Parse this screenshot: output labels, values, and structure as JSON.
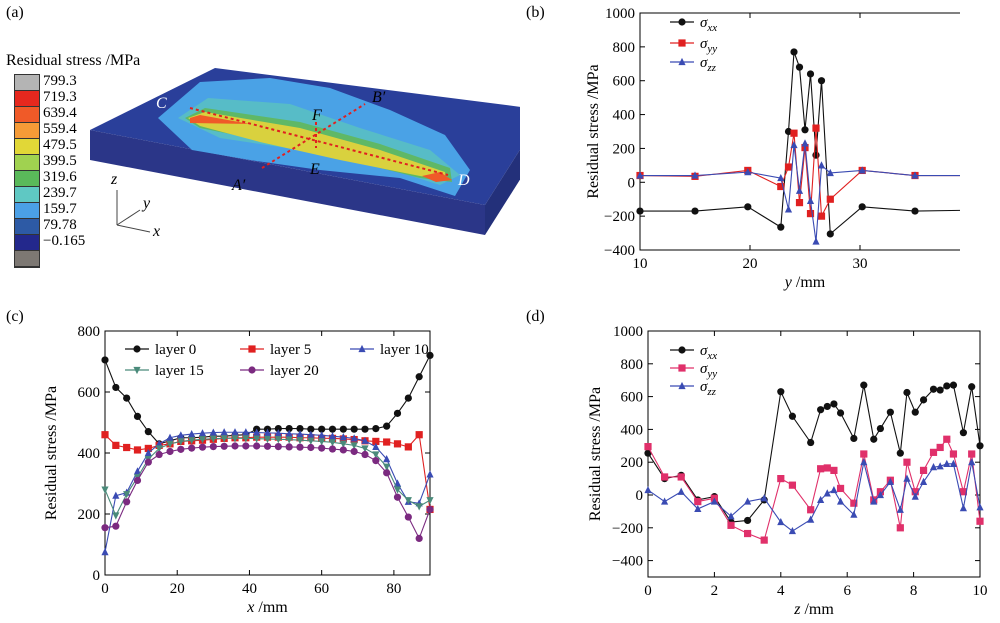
{
  "panels": {
    "a": {
      "label": "(a)",
      "colorbar_title": "Residual stress /MPa",
      "colorbar_labels": [
        "799.3",
        "719.3",
        "639.4",
        "559.4",
        "479.5",
        "399.5",
        "319.6",
        "239.7",
        "159.7",
        "79.78",
        "−0.165"
      ],
      "colorbar_colors": [
        "#b4b4b4",
        "#e6281e",
        "#f05a28",
        "#f59b37",
        "#e1d737",
        "#a0d250",
        "#5ab95a",
        "#5fc8c3",
        "#4ba0e6",
        "#2d5aa5",
        "#23288c",
        "#7d7873"
      ],
      "points": {
        "C": "C",
        "D": "D",
        "E": "E",
        "F": "F",
        "A": "A′",
        "B": "B′"
      },
      "axes": {
        "z": "z",
        "y": "y",
        "x": "x"
      }
    },
    "b": {
      "label": "(b)"
    },
    "c": {
      "label": "(c)"
    },
    "d": {
      "label": "(d)"
    }
  },
  "chart_data": [
    {
      "id": "b",
      "type": "line",
      "xlabel": "y /mm",
      "ylabel": "Residual stress /MPa",
      "xlim": [
        10,
        40
      ],
      "ylim": [
        -400,
        1000
      ],
      "xticks": [
        "10",
        "20",
        "30",
        "40"
      ],
      "yticks": [
        "−400",
        "−200",
        "0",
        "200",
        "400",
        "600",
        "800",
        "1000"
      ],
      "legend_position": "top-left",
      "series": [
        {
          "name": "σxx",
          "color": "#111111",
          "marker": "circle",
          "x": [
            10,
            15,
            19.8,
            22.8,
            23.5,
            24,
            24.5,
            25,
            25.5,
            26,
            26.5,
            27.3,
            30.2,
            35,
            40
          ],
          "y": [
            -170,
            -170,
            -145,
            -265,
            300,
            770,
            680,
            310,
            640,
            160,
            600,
            -305,
            -145,
            -170,
            -165
          ]
        },
        {
          "name": "σyy",
          "color": "#e02020",
          "marker": "square",
          "x": [
            10,
            15,
            19.8,
            22.8,
            23.5,
            24,
            24.5,
            25,
            25.5,
            26,
            26.5,
            27.3,
            30.2,
            35,
            40
          ],
          "y": [
            40,
            35,
            70,
            -25,
            90,
            290,
            -120,
            205,
            -185,
            320,
            -200,
            -100,
            70,
            40,
            40
          ]
        },
        {
          "name": "σzz",
          "color": "#3a4bb3",
          "marker": "triangle",
          "x": [
            10,
            15,
            19.8,
            22.8,
            23.5,
            24,
            24.5,
            25,
            25.5,
            26,
            26.5,
            27.3,
            30.2,
            35,
            40
          ],
          "y": [
            40,
            40,
            60,
            25,
            -160,
            220,
            -50,
            230,
            -110,
            -350,
            100,
            55,
            70,
            40,
            40
          ]
        }
      ]
    },
    {
      "id": "c",
      "type": "line",
      "xlabel": "x /mm",
      "ylabel": "Residual stress /MPa",
      "xlim": [
        0,
        90
      ],
      "ylim": [
        0,
        800
      ],
      "xticks": [
        "0",
        "20",
        "40",
        "60",
        "80"
      ],
      "yticks": [
        "0",
        "200",
        "400",
        "600",
        "800"
      ],
      "legend_position": "top",
      "series": [
        {
          "name": "layer 0",
          "color": "#111111",
          "marker": "circle",
          "x": [
            0,
            3,
            6,
            9,
            12,
            15,
            18,
            21,
            24,
            27,
            30,
            33,
            36,
            39,
            42,
            45,
            48,
            51,
            54,
            57,
            60,
            63,
            66,
            69,
            72,
            75,
            78,
            81,
            84,
            87,
            90
          ],
          "y": [
            705,
            615,
            580,
            520,
            470,
            430,
            440,
            450,
            450,
            452,
            455,
            455,
            458,
            460,
            478,
            478,
            480,
            480,
            480,
            478,
            478,
            478,
            478,
            478,
            478,
            480,
            488,
            530,
            580,
            650,
            720
          ]
        },
        {
          "name": "layer 5",
          "color": "#e02020",
          "marker": "square",
          "x": [
            0,
            3,
            6,
            9,
            12,
            15,
            18,
            21,
            24,
            27,
            30,
            33,
            36,
            39,
            42,
            45,
            48,
            51,
            54,
            57,
            60,
            63,
            66,
            69,
            72,
            75,
            78,
            81,
            84,
            87,
            90
          ],
          "y": [
            460,
            425,
            418,
            410,
            415,
            425,
            430,
            438,
            440,
            442,
            445,
            448,
            450,
            450,
            452,
            452,
            452,
            452,
            450,
            450,
            448,
            448,
            446,
            444,
            440,
            438,
            436,
            430,
            420,
            460,
            215
          ]
        },
        {
          "name": "layer 10",
          "color": "#3a4bb3",
          "marker": "triangle",
          "x": [
            0,
            3,
            6,
            9,
            12,
            15,
            18,
            21,
            24,
            27,
            30,
            33,
            36,
            39,
            42,
            45,
            48,
            51,
            54,
            57,
            60,
            63,
            66,
            69,
            72,
            75,
            78,
            81,
            84,
            87,
            90
          ],
          "y": [
            75,
            260,
            270,
            340,
            400,
            430,
            450,
            458,
            462,
            465,
            467,
            468,
            468,
            468,
            467,
            466,
            465,
            463,
            462,
            460,
            458,
            455,
            452,
            448,
            440,
            420,
            380,
            300,
            240,
            235,
            330
          ]
        },
        {
          "name": "layer 15",
          "color": "#4a8a7a",
          "marker": "triangle-down",
          "x": [
            0,
            3,
            6,
            9,
            12,
            15,
            18,
            21,
            24,
            27,
            30,
            33,
            36,
            39,
            42,
            45,
            48,
            51,
            54,
            57,
            60,
            63,
            66,
            69,
            72,
            75,
            78,
            81,
            84,
            87,
            90
          ],
          "y": [
            280,
            195,
            265,
            320,
            380,
            415,
            430,
            438,
            442,
            445,
            447,
            448,
            448,
            448,
            447,
            446,
            445,
            444,
            442,
            440,
            438,
            435,
            430,
            425,
            415,
            395,
            355,
            280,
            245,
            225,
            245
          ]
        },
        {
          "name": "layer 20",
          "color": "#7b2a80",
          "marker": "circle",
          "x": [
            0,
            3,
            6,
            9,
            12,
            15,
            18,
            21,
            24,
            27,
            30,
            33,
            36,
            39,
            42,
            45,
            48,
            51,
            54,
            57,
            60,
            63,
            66,
            69,
            72,
            75,
            78,
            81,
            84,
            87,
            90
          ],
          "y": [
            155,
            160,
            240,
            310,
            370,
            395,
            405,
            412,
            416,
            419,
            421,
            422,
            423,
            423,
            423,
            422,
            421,
            420,
            419,
            418,
            416,
            413,
            410,
            405,
            395,
            375,
            335,
            255,
            190,
            120,
            215
          ]
        }
      ]
    },
    {
      "id": "d",
      "type": "line",
      "xlabel": "z /mm",
      "ylabel": "Residual stress /MPa",
      "xlim": [
        0,
        10
      ],
      "ylim": [
        -500,
        1000
      ],
      "xticks": [
        "0",
        "2",
        "4",
        "6",
        "8",
        "10"
      ],
      "yticks": [
        "−400",
        "−200",
        "0",
        "200",
        "400",
        "600",
        "800",
        "1000"
      ],
      "legend_position": "top-left",
      "series": [
        {
          "name": "σxx",
          "color": "#111111",
          "marker": "circle",
          "x": [
            0,
            0.5,
            1,
            1.5,
            2,
            2.5,
            3,
            3.5,
            4,
            4.35,
            4.9,
            5.2,
            5.4,
            5.6,
            5.8,
            6.2,
            6.5,
            6.8,
            7,
            7.3,
            7.6,
            7.8,
            8.05,
            8.3,
            8.6,
            8.8,
            9,
            9.2,
            9.5,
            9.75,
            10
          ],
          "y": [
            255,
            100,
            120,
            -30,
            -10,
            -165,
            -155,
            -30,
            630,
            480,
            320,
            520,
            540,
            555,
            500,
            345,
            670,
            340,
            405,
            505,
            255,
            625,
            505,
            580,
            645,
            640,
            665,
            670,
            380,
            660,
            300
          ]
        },
        {
          "name": "σyy",
          "color": "#e0306a",
          "marker": "square",
          "x": [
            0,
            0.5,
            1,
            1.5,
            2,
            2.5,
            3,
            3.5,
            4,
            4.35,
            4.9,
            5.2,
            5.4,
            5.6,
            5.8,
            6.2,
            6.5,
            6.8,
            7,
            7.3,
            7.6,
            7.8,
            8.05,
            8.3,
            8.6,
            8.8,
            9,
            9.2,
            9.5,
            9.75,
            10
          ],
          "y": [
            295,
            110,
            110,
            -40,
            -20,
            -185,
            -235,
            -275,
            100,
            60,
            -90,
            160,
            165,
            150,
            40,
            -50,
            250,
            -30,
            20,
            90,
            -200,
            200,
            20,
            150,
            260,
            290,
            340,
            250,
            20,
            250,
            -160
          ]
        },
        {
          "name": "σzz",
          "color": "#3a4bb3",
          "marker": "triangle",
          "x": [
            0,
            0.5,
            1,
            1.5,
            2,
            2.5,
            3,
            3.5,
            4,
            4.35,
            4.9,
            5.2,
            5.4,
            5.6,
            5.8,
            6.2,
            6.5,
            6.8,
            7,
            7.3,
            7.6,
            7.8,
            8.05,
            8.3,
            8.6,
            8.8,
            9,
            9.2,
            9.5,
            9.75,
            10
          ],
          "y": [
            30,
            -40,
            20,
            -85,
            -40,
            -130,
            -40,
            -20,
            -165,
            -220,
            -150,
            -30,
            10,
            30,
            -40,
            -120,
            200,
            -40,
            0,
            80,
            -90,
            100,
            -10,
            80,
            170,
            175,
            190,
            190,
            -80,
            200,
            -75
          ]
        }
      ]
    }
  ]
}
